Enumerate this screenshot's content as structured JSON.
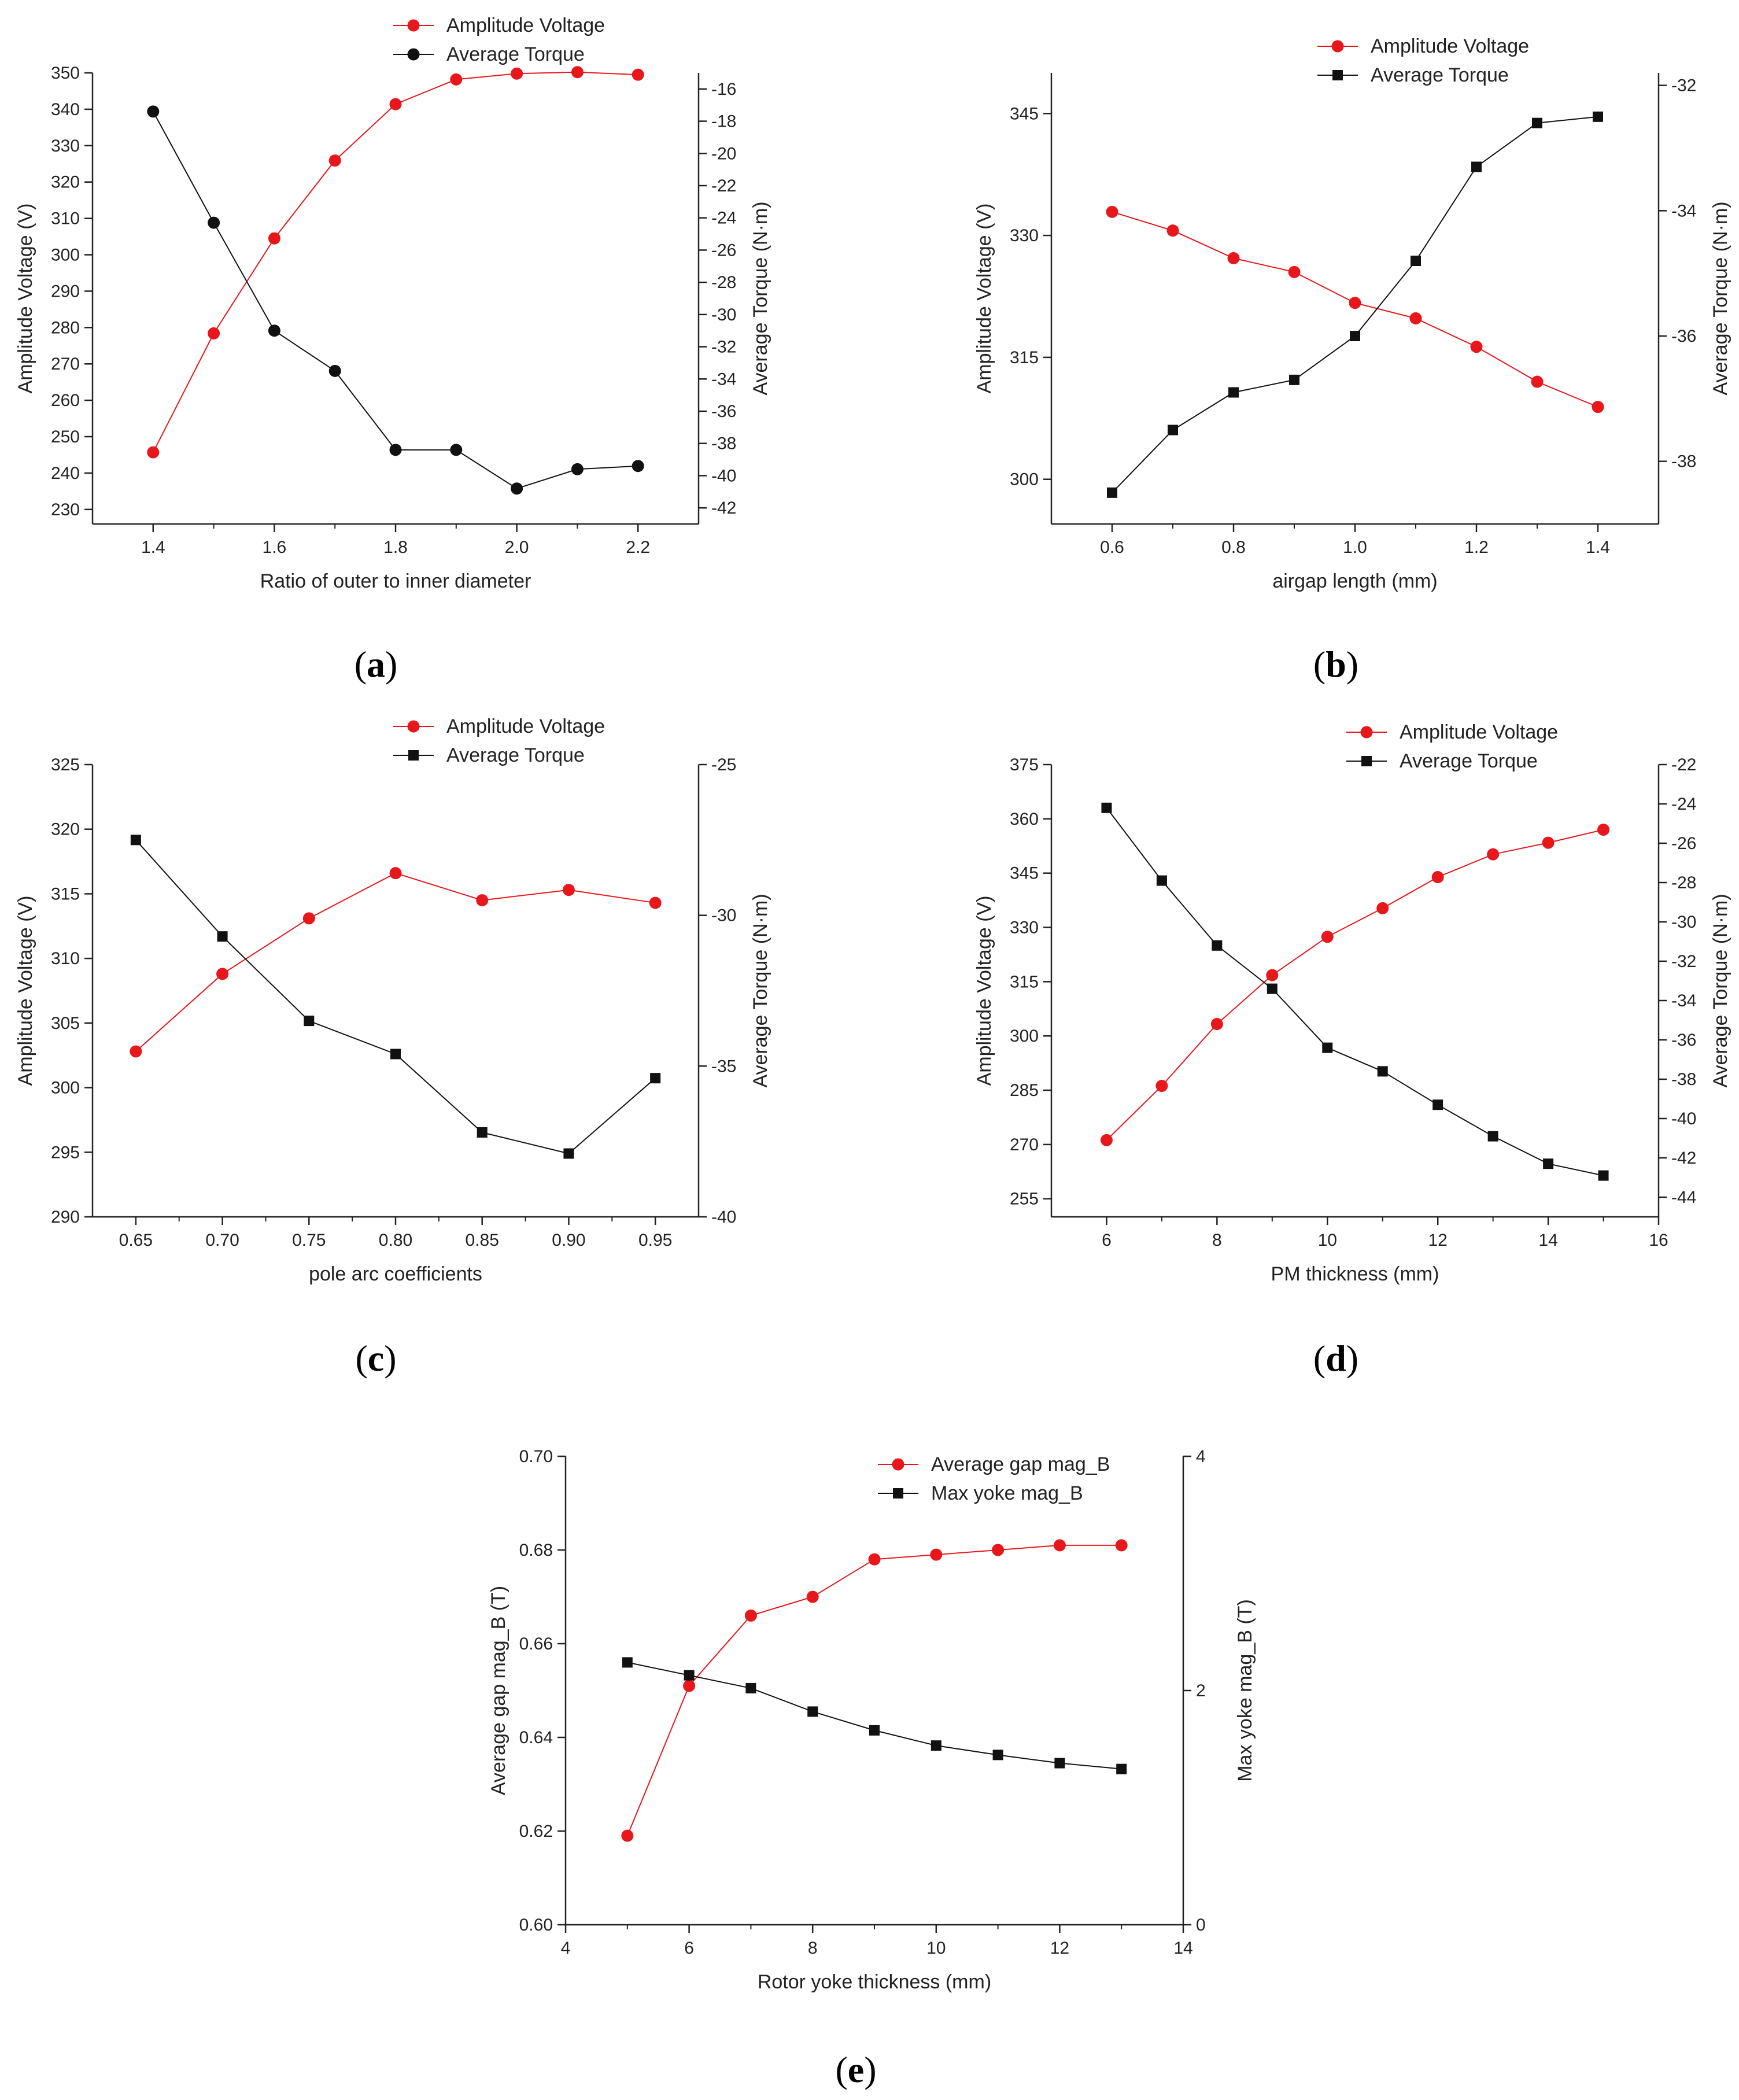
{
  "colors": {
    "red": "#e8171c",
    "black": "#111111",
    "axis": "#222222"
  },
  "chart_data": [
    {
      "id": "a",
      "panel_label": "a",
      "type": "line",
      "xlabel": "Ratio of outer to inner diameter",
      "ylabel": "Amplitude Voltage (V)",
      "y2label": "Average Torque (N·m)",
      "xlim": [
        1.3,
        2.3
      ],
      "ylim": [
        226,
        350
      ],
      "y2lim": [
        -43,
        -15
      ],
      "xticks": [
        1.4,
        1.6,
        1.8,
        2.0,
        2.2
      ],
      "xtick_labels": [
        "1.4",
        "1.6",
        "1.8",
        "2.0",
        "2.2"
      ],
      "yticks": [
        230,
        240,
        250,
        260,
        270,
        280,
        290,
        300,
        310,
        320,
        330,
        340,
        350
      ],
      "ytick_labels": [
        "230",
        "240",
        "250",
        "260",
        "270",
        "280",
        "290",
        "300",
        "310",
        "320",
        "330",
        "340",
        "350"
      ],
      "y2ticks": [
        -42,
        -40,
        -38,
        -36,
        -34,
        -32,
        -30,
        -28,
        -26,
        -24,
        -22,
        -20,
        -18,
        -16
      ],
      "y2tick_labels": [
        "-42",
        "-40",
        "-38",
        "-36",
        "-34",
        "-32",
        "-30",
        "-28",
        "-26",
        "-24",
        "-22",
        "-20",
        "-18",
        "-16"
      ],
      "x": [
        1.4,
        1.5,
        1.6,
        1.7,
        1.8,
        1.9,
        2.0,
        2.1,
        2.2
      ],
      "series": [
        {
          "name": "Amplitude Voltage",
          "axis": "left",
          "color": "#e8171c",
          "marker": "circle",
          "values": [
            245.7,
            278.4,
            304.5,
            325.9,
            341.4,
            348.2,
            349.8,
            350.2,
            349.5
          ]
        },
        {
          "name": "Average Torque",
          "axis": "right",
          "color": "#111111",
          "marker": "circle",
          "values": [
            -17.4,
            -24.3,
            -31.0,
            -33.5,
            -38.4,
            -38.4,
            -40.8,
            -39.6,
            -39.4
          ]
        }
      ]
    },
    {
      "id": "b",
      "panel_label": "b",
      "type": "line",
      "xlabel": "airgap length (mm)",
      "ylabel": "Amplitude Voltage (V)",
      "y2label": "Average Torque (N·m)",
      "xlim": [
        0.5,
        1.5
      ],
      "ylim": [
        294.5,
        350
      ],
      "y2lim": [
        -39,
        -31.8
      ],
      "xticks": [
        0.6,
        0.8,
        1.0,
        1.2,
        1.4
      ],
      "xtick_labels": [
        "0.6",
        "0.8",
        "1.0",
        "1.2",
        "1.4"
      ],
      "yticks": [
        300,
        315,
        330,
        345
      ],
      "ytick_labels": [
        "300",
        "315",
        "330",
        "345"
      ],
      "y2ticks": [
        -38,
        -36,
        -34,
        -32
      ],
      "y2tick_labels": [
        "-38",
        "-36",
        "-34",
        "-32"
      ],
      "x": [
        0.6,
        0.7,
        0.8,
        0.9,
        1.0,
        1.1,
        1.2,
        1.3,
        1.4
      ],
      "series": [
        {
          "name": "Amplitude Voltage",
          "axis": "left",
          "color": "#e8171c",
          "marker": "circle",
          "values": [
            332.9,
            330.6,
            327.2,
            325.5,
            321.7,
            319.8,
            316.3,
            312.0,
            308.9
          ]
        },
        {
          "name": "Average Torque",
          "axis": "right",
          "color": "#111111",
          "marker": "square",
          "values": [
            -38.5,
            -37.5,
            -36.9,
            -36.7,
            -36.0,
            -34.8,
            -33.3,
            -32.6,
            -32.5
          ]
        }
      ]
    },
    {
      "id": "c",
      "panel_label": "c",
      "type": "line",
      "xlabel": "pole arc coefficients",
      "ylabel": "Amplitude Voltage (V)",
      "y2label": "Average Torque (N·m)",
      "xlim": [
        0.625,
        0.975
      ],
      "ylim": [
        290,
        325
      ],
      "y2lim": [
        -40,
        -25
      ],
      "xticks": [
        0.65,
        0.7,
        0.75,
        0.8,
        0.85,
        0.9,
        0.95
      ],
      "xtick_labels": [
        "0.65",
        "0.70",
        "0.75",
        "0.80",
        "0.85",
        "0.90",
        "0.95"
      ],
      "yticks": [
        290,
        295,
        300,
        305,
        310,
        315,
        320,
        325
      ],
      "ytick_labels": [
        "290",
        "295",
        "300",
        "305",
        "310",
        "315",
        "320",
        "325"
      ],
      "y2ticks": [
        -40,
        -35,
        -30,
        -25
      ],
      "y2tick_labels": [
        "-40",
        "-35",
        "-30",
        "-25"
      ],
      "x": [
        0.65,
        0.7,
        0.75,
        0.8,
        0.85,
        0.9,
        0.95
      ],
      "series": [
        {
          "name": "Amplitude Voltage",
          "axis": "left",
          "color": "#e8171c",
          "marker": "circle",
          "values": [
            302.8,
            308.8,
            313.1,
            316.6,
            314.5,
            315.3,
            314.3
          ]
        },
        {
          "name": "Average Torque",
          "axis": "right",
          "color": "#111111",
          "marker": "square",
          "values": [
            -27.5,
            -30.7,
            -33.5,
            -34.6,
            -37.2,
            -37.9,
            -35.4
          ]
        }
      ]
    },
    {
      "id": "d",
      "panel_label": "d",
      "type": "line",
      "xlabel": "PM thickness (mm)",
      "ylabel": "Amplitude Voltage (V)",
      "y2label": "Average Torque (N·m)",
      "xlim": [
        5,
        16
      ],
      "ylim": [
        250,
        375
      ],
      "y2lim": [
        -45,
        -22
      ],
      "xticks": [
        6,
        8,
        10,
        12,
        14,
        16
      ],
      "xtick_labels": [
        "6",
        "8",
        "10",
        "12",
        "14",
        "16"
      ],
      "yticks": [
        255,
        270,
        285,
        300,
        315,
        330,
        345,
        360,
        375
      ],
      "ytick_labels": [
        "255",
        "270",
        "285",
        "300",
        "315",
        "330",
        "345",
        "360",
        "375"
      ],
      "y2ticks": [
        -44,
        -42,
        -40,
        -38,
        -36,
        -34,
        -32,
        -30,
        -28,
        -26,
        -24,
        -22
      ],
      "y2tick_labels": [
        "-44",
        "-42",
        "-40",
        "-38",
        "-36",
        "-34",
        "-32",
        "-30",
        "-28",
        "-26",
        "-24",
        "-22"
      ],
      "x": [
        6,
        7,
        8,
        9,
        10,
        11,
        12,
        13,
        14,
        15
      ],
      "series": [
        {
          "name": "Amplitude Voltage",
          "axis": "left",
          "color": "#e8171c",
          "marker": "circle",
          "values": [
            271.2,
            286.2,
            303.3,
            316.8,
            327.4,
            335.3,
            343.9,
            350.2,
            353.4,
            357.0
          ]
        },
        {
          "name": "Average Torque",
          "axis": "right",
          "color": "#111111",
          "marker": "square",
          "values": [
            -24.2,
            -27.9,
            -31.2,
            -33.4,
            -36.4,
            -37.6,
            -39.3,
            -40.9,
            -42.3,
            -42.9
          ]
        }
      ]
    },
    {
      "id": "e",
      "panel_label": "e",
      "type": "line",
      "xlabel": "Rotor yoke thickness (mm)",
      "ylabel": "Average gap mag_B (T)",
      "y2label": "Max yoke mag_B (T)",
      "xlim": [
        4,
        14
      ],
      "ylim": [
        0.6,
        0.7
      ],
      "y2lim": [
        0,
        4
      ],
      "xticks": [
        4,
        6,
        8,
        10,
        12,
        14
      ],
      "xtick_labels": [
        "4",
        "6",
        "8",
        "10",
        "12",
        "14"
      ],
      "yticks": [
        0.6,
        0.62,
        0.64,
        0.66,
        0.68,
        0.7
      ],
      "ytick_labels": [
        "0.60",
        "0.62",
        "0.64",
        "0.66",
        "0.68",
        "0.70"
      ],
      "y2ticks": [
        0,
        2,
        4
      ],
      "y2tick_labels": [
        "0",
        "2",
        "4"
      ],
      "x": [
        5,
        6,
        7,
        8,
        9,
        10,
        11,
        12,
        13
      ],
      "series": [
        {
          "name": "Average gap mag_B",
          "axis": "left",
          "color": "#e8171c",
          "marker": "circle",
          "values": [
            0.619,
            0.651,
            0.666,
            0.67,
            0.678,
            0.679,
            0.68,
            0.681,
            0.681
          ]
        },
        {
          "name": "Max yoke mag_B",
          "axis": "right",
          "color": "#111111",
          "marker": "square",
          "values": [
            2.24,
            2.13,
            2.02,
            1.82,
            1.66,
            1.53,
            1.45,
            1.38,
            1.33
          ]
        }
      ]
    }
  ]
}
